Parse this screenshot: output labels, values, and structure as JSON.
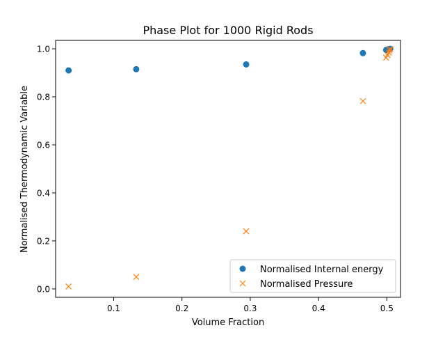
{
  "chart_data": {
    "type": "scatter",
    "title": "Phase Plot for 1000 Rigid Rods",
    "xlabel": "Volume Fraction",
    "ylabel": "Normalised Thermodynamic Variable",
    "xlim": [
      0.015,
      0.52
    ],
    "ylim": [
      -0.035,
      1.035
    ],
    "xticks": [
      0.1,
      0.2,
      0.3,
      0.4,
      0.5
    ],
    "xtick_labels": [
      "0.1",
      "0.2",
      "0.3",
      "0.4",
      "0.5"
    ],
    "yticks": [
      0.0,
      0.2,
      0.4,
      0.6,
      0.8,
      1.0
    ],
    "ytick_labels": [
      "0.0",
      "0.2",
      "0.4",
      "0.6",
      "0.8",
      "1.0"
    ],
    "grid": false,
    "legend_position": "lower-right",
    "series": [
      {
        "name": "Normalised Internal energy",
        "marker": "circle",
        "color": "#1f77b4",
        "x": [
          0.034,
          0.133,
          0.294,
          0.465,
          0.499,
          0.501,
          0.503,
          0.504,
          0.505
        ],
        "y": [
          0.91,
          0.915,
          0.935,
          0.982,
          0.995,
          0.997,
          0.998,
          0.999,
          1.0
        ]
      },
      {
        "name": "Normalised Pressure",
        "marker": "x",
        "color": "#ff7f0e",
        "x": [
          0.034,
          0.133,
          0.294,
          0.465,
          0.499,
          0.501,
          0.503,
          0.504,
          0.505
        ],
        "y": [
          0.01,
          0.05,
          0.24,
          0.782,
          0.963,
          0.974,
          0.984,
          0.993,
          1.0
        ]
      }
    ]
  }
}
